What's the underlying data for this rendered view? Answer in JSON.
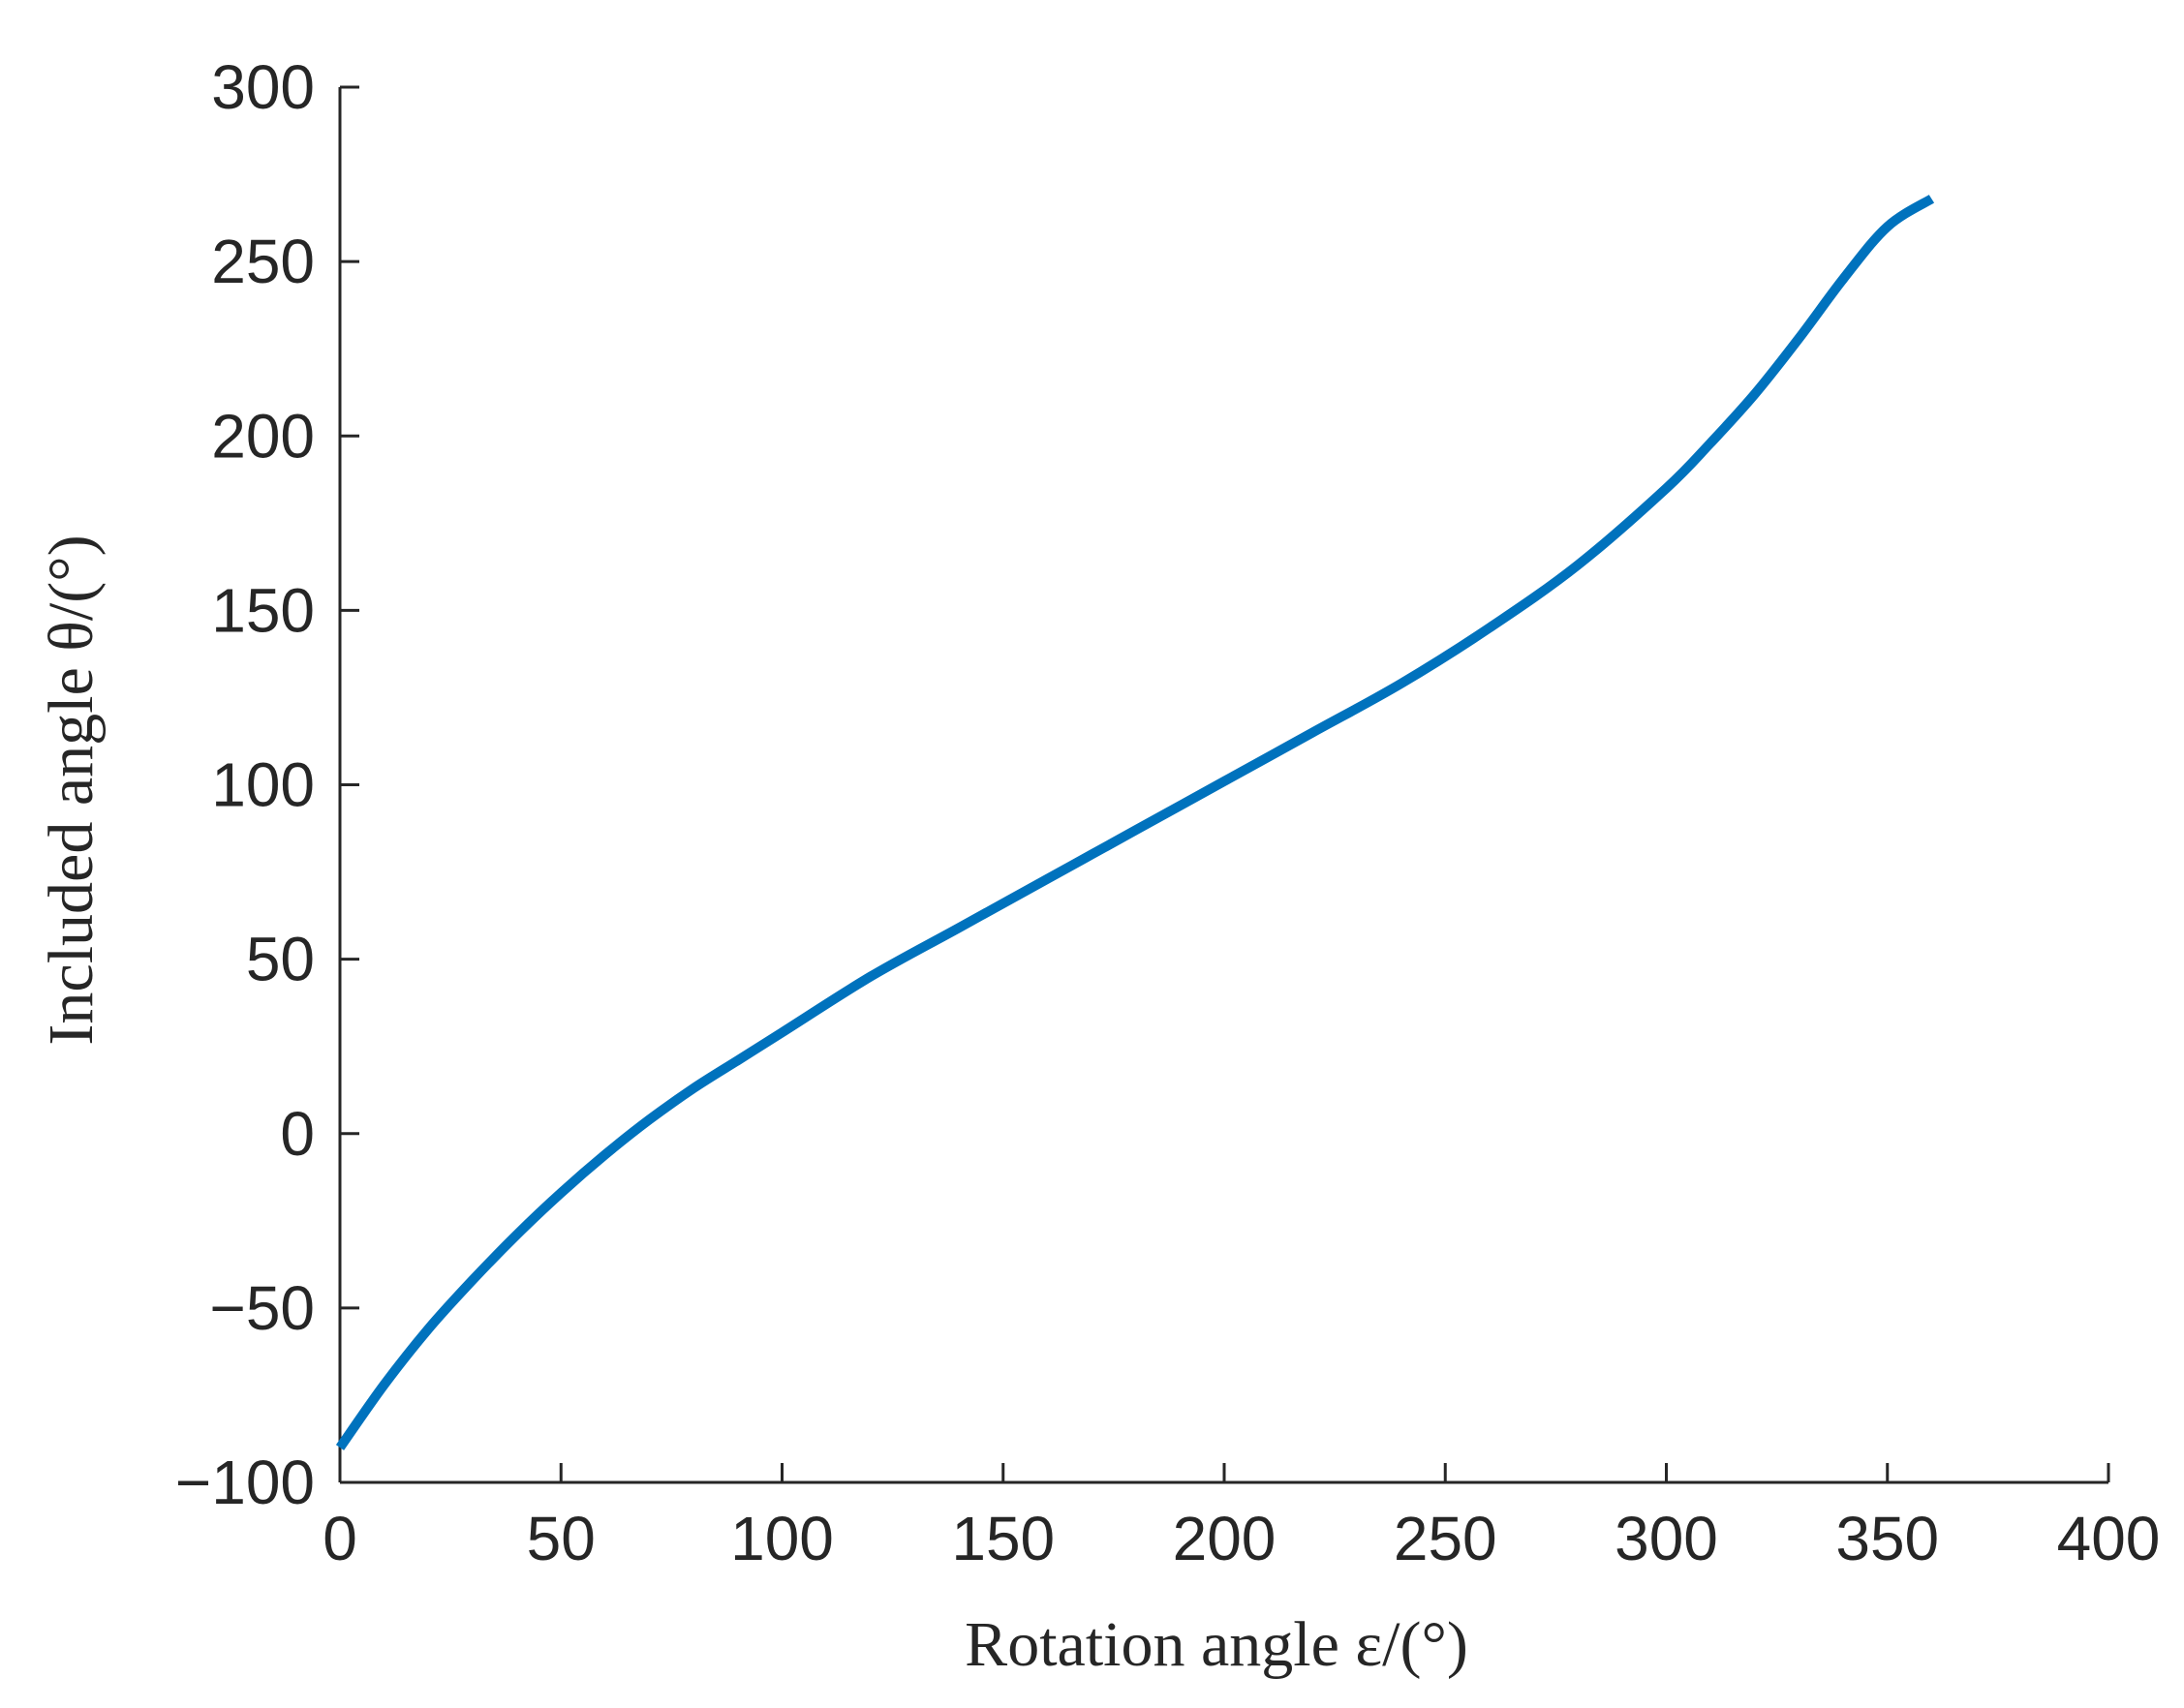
{
  "chart_data": {
    "type": "line",
    "title": "",
    "xlabel": "Rotation angle ε/(°)",
    "ylabel": "Included angle θ/(°)",
    "xlim": [
      0,
      400
    ],
    "ylim": [
      -100,
      300
    ],
    "xticks": [
      0,
      50,
      100,
      150,
      200,
      250,
      300,
      350,
      400
    ],
    "yticks": [
      -100,
      -50,
      0,
      50,
      100,
      150,
      200,
      250,
      300
    ],
    "xtick_labels": [
      "0",
      "50",
      "100",
      "150",
      "200",
      "250",
      "300",
      "350",
      "400"
    ],
    "ytick_labels": [
      "−100",
      "−50",
      "0",
      "50",
      "100",
      "150",
      "200",
      "250",
      "300"
    ],
    "grid": false,
    "legend": "none",
    "series": [
      {
        "color": "#0072BD",
        "x": [
          0,
          10,
          20,
          30,
          40,
          50,
          60,
          70,
          80,
          90,
          100,
          120,
          140,
          160,
          180,
          200,
          220,
          240,
          260,
          280,
          300,
          310,
          320,
          330,
          340,
          350,
          360
        ],
        "y": [
          -90,
          -72,
          -56,
          -42,
          -29,
          -17,
          -6,
          4,
          13,
          21,
          29,
          45,
          59,
          73,
          87,
          101,
          115,
          129,
          145,
          163,
          185,
          198,
          212,
          228,
          245,
          260,
          268
        ]
      }
    ]
  }
}
